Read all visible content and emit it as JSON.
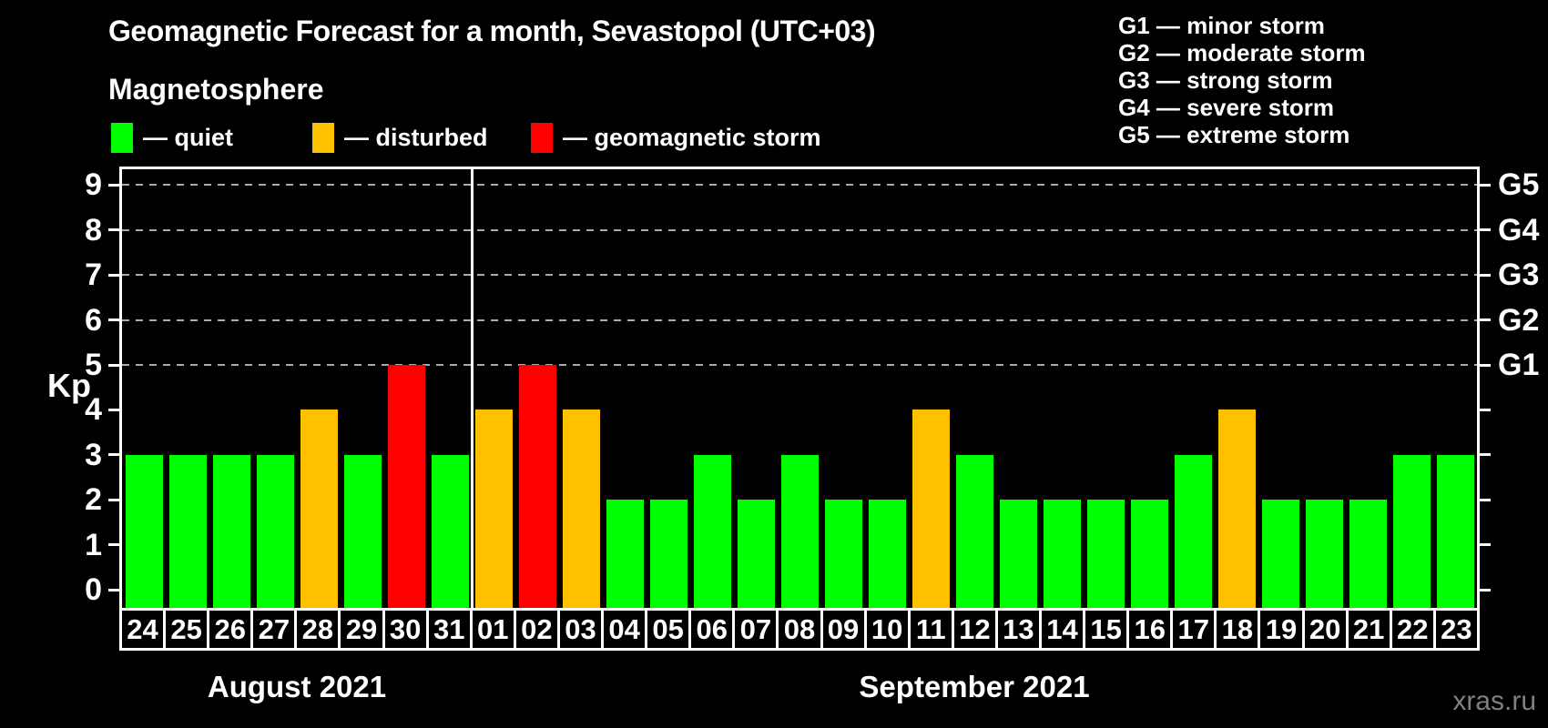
{
  "header": {
    "title": "Geomagnetic Forecast for a month, Sevastopol (UTC+03)",
    "subtitle": "Magnetosphere"
  },
  "legend": {
    "dash": "—",
    "items": [
      {
        "key": "quiet",
        "label": "quiet",
        "color": "#00FF00"
      },
      {
        "key": "disturbed",
        "label": "disturbed",
        "color": "#FFC000"
      },
      {
        "key": "storm",
        "label": "geomagnetic storm",
        "color": "#FF0000"
      }
    ]
  },
  "storm_scale": {
    "dash": "—",
    "items": [
      {
        "code": "G1",
        "name": "minor storm"
      },
      {
        "code": "G2",
        "name": "moderate storm"
      },
      {
        "code": "G3",
        "name": "strong storm"
      },
      {
        "code": "G4",
        "name": "severe storm"
      },
      {
        "code": "G5",
        "name": "extreme storm"
      }
    ]
  },
  "watermark": "xras.ru",
  "chart_data": {
    "type": "bar",
    "title": "Geomagnetic Forecast for a month, Sevastopol (UTC+03)",
    "ylabel": "Kp",
    "ylim": [
      0,
      9.4
    ],
    "y_ticks": [
      0,
      1,
      2,
      3,
      4,
      5,
      6,
      7,
      8,
      9
    ],
    "gridlines_at": [
      5,
      6,
      7,
      8,
      9
    ],
    "grid": "dashed-horizontal",
    "right_axis": [
      {
        "value": 5,
        "label": "G1"
      },
      {
        "value": 6,
        "label": "G2"
      },
      {
        "value": 7,
        "label": "G3"
      },
      {
        "value": 8,
        "label": "G4"
      },
      {
        "value": 9,
        "label": "G5"
      }
    ],
    "status_colors": {
      "quiet": "#00FF00",
      "disturbed": "#FFC000",
      "storm": "#FF0000"
    },
    "month_groups": [
      {
        "label": "August 2021",
        "count": 8
      },
      {
        "label": "September 2021",
        "count": 23
      }
    ],
    "bars": [
      {
        "date": "24",
        "month": "August 2021",
        "kp": 3,
        "status": "quiet"
      },
      {
        "date": "25",
        "month": "August 2021",
        "kp": 3,
        "status": "quiet"
      },
      {
        "date": "26",
        "month": "August 2021",
        "kp": 3,
        "status": "quiet"
      },
      {
        "date": "27",
        "month": "August 2021",
        "kp": 3,
        "status": "quiet"
      },
      {
        "date": "28",
        "month": "August 2021",
        "kp": 4,
        "status": "disturbed"
      },
      {
        "date": "29",
        "month": "August 2021",
        "kp": 3,
        "status": "quiet"
      },
      {
        "date": "30",
        "month": "August 2021",
        "kp": 5,
        "status": "storm"
      },
      {
        "date": "31",
        "month": "August 2021",
        "kp": 3,
        "status": "quiet"
      },
      {
        "date": "01",
        "month": "September 2021",
        "kp": 4,
        "status": "disturbed"
      },
      {
        "date": "02",
        "month": "September 2021",
        "kp": 5,
        "status": "storm"
      },
      {
        "date": "03",
        "month": "September 2021",
        "kp": 4,
        "status": "disturbed"
      },
      {
        "date": "04",
        "month": "September 2021",
        "kp": 2,
        "status": "quiet"
      },
      {
        "date": "05",
        "month": "September 2021",
        "kp": 2,
        "status": "quiet"
      },
      {
        "date": "06",
        "month": "September 2021",
        "kp": 3,
        "status": "quiet"
      },
      {
        "date": "07",
        "month": "September 2021",
        "kp": 2,
        "status": "quiet"
      },
      {
        "date": "08",
        "month": "September 2021",
        "kp": 3,
        "status": "quiet"
      },
      {
        "date": "09",
        "month": "September 2021",
        "kp": 2,
        "status": "quiet"
      },
      {
        "date": "10",
        "month": "September 2021",
        "kp": 2,
        "status": "quiet"
      },
      {
        "date": "11",
        "month": "September 2021",
        "kp": 4,
        "status": "disturbed"
      },
      {
        "date": "12",
        "month": "September 2021",
        "kp": 3,
        "status": "quiet"
      },
      {
        "date": "13",
        "month": "September 2021",
        "kp": 2,
        "status": "quiet"
      },
      {
        "date": "14",
        "month": "September 2021",
        "kp": 2,
        "status": "quiet"
      },
      {
        "date": "15",
        "month": "September 2021",
        "kp": 2,
        "status": "quiet"
      },
      {
        "date": "16",
        "month": "September 2021",
        "kp": 2,
        "status": "quiet"
      },
      {
        "date": "17",
        "month": "September 2021",
        "kp": 3,
        "status": "quiet"
      },
      {
        "date": "18",
        "month": "September 2021",
        "kp": 4,
        "status": "disturbed"
      },
      {
        "date": "19",
        "month": "September 2021",
        "kp": 2,
        "status": "quiet"
      },
      {
        "date": "20",
        "month": "September 2021",
        "kp": 2,
        "status": "quiet"
      },
      {
        "date": "21",
        "month": "September 2021",
        "kp": 2,
        "status": "quiet"
      },
      {
        "date": "22",
        "month": "September 2021",
        "kp": 3,
        "status": "quiet"
      },
      {
        "date": "23",
        "month": "September 2021",
        "kp": 3,
        "status": "quiet"
      }
    ]
  }
}
